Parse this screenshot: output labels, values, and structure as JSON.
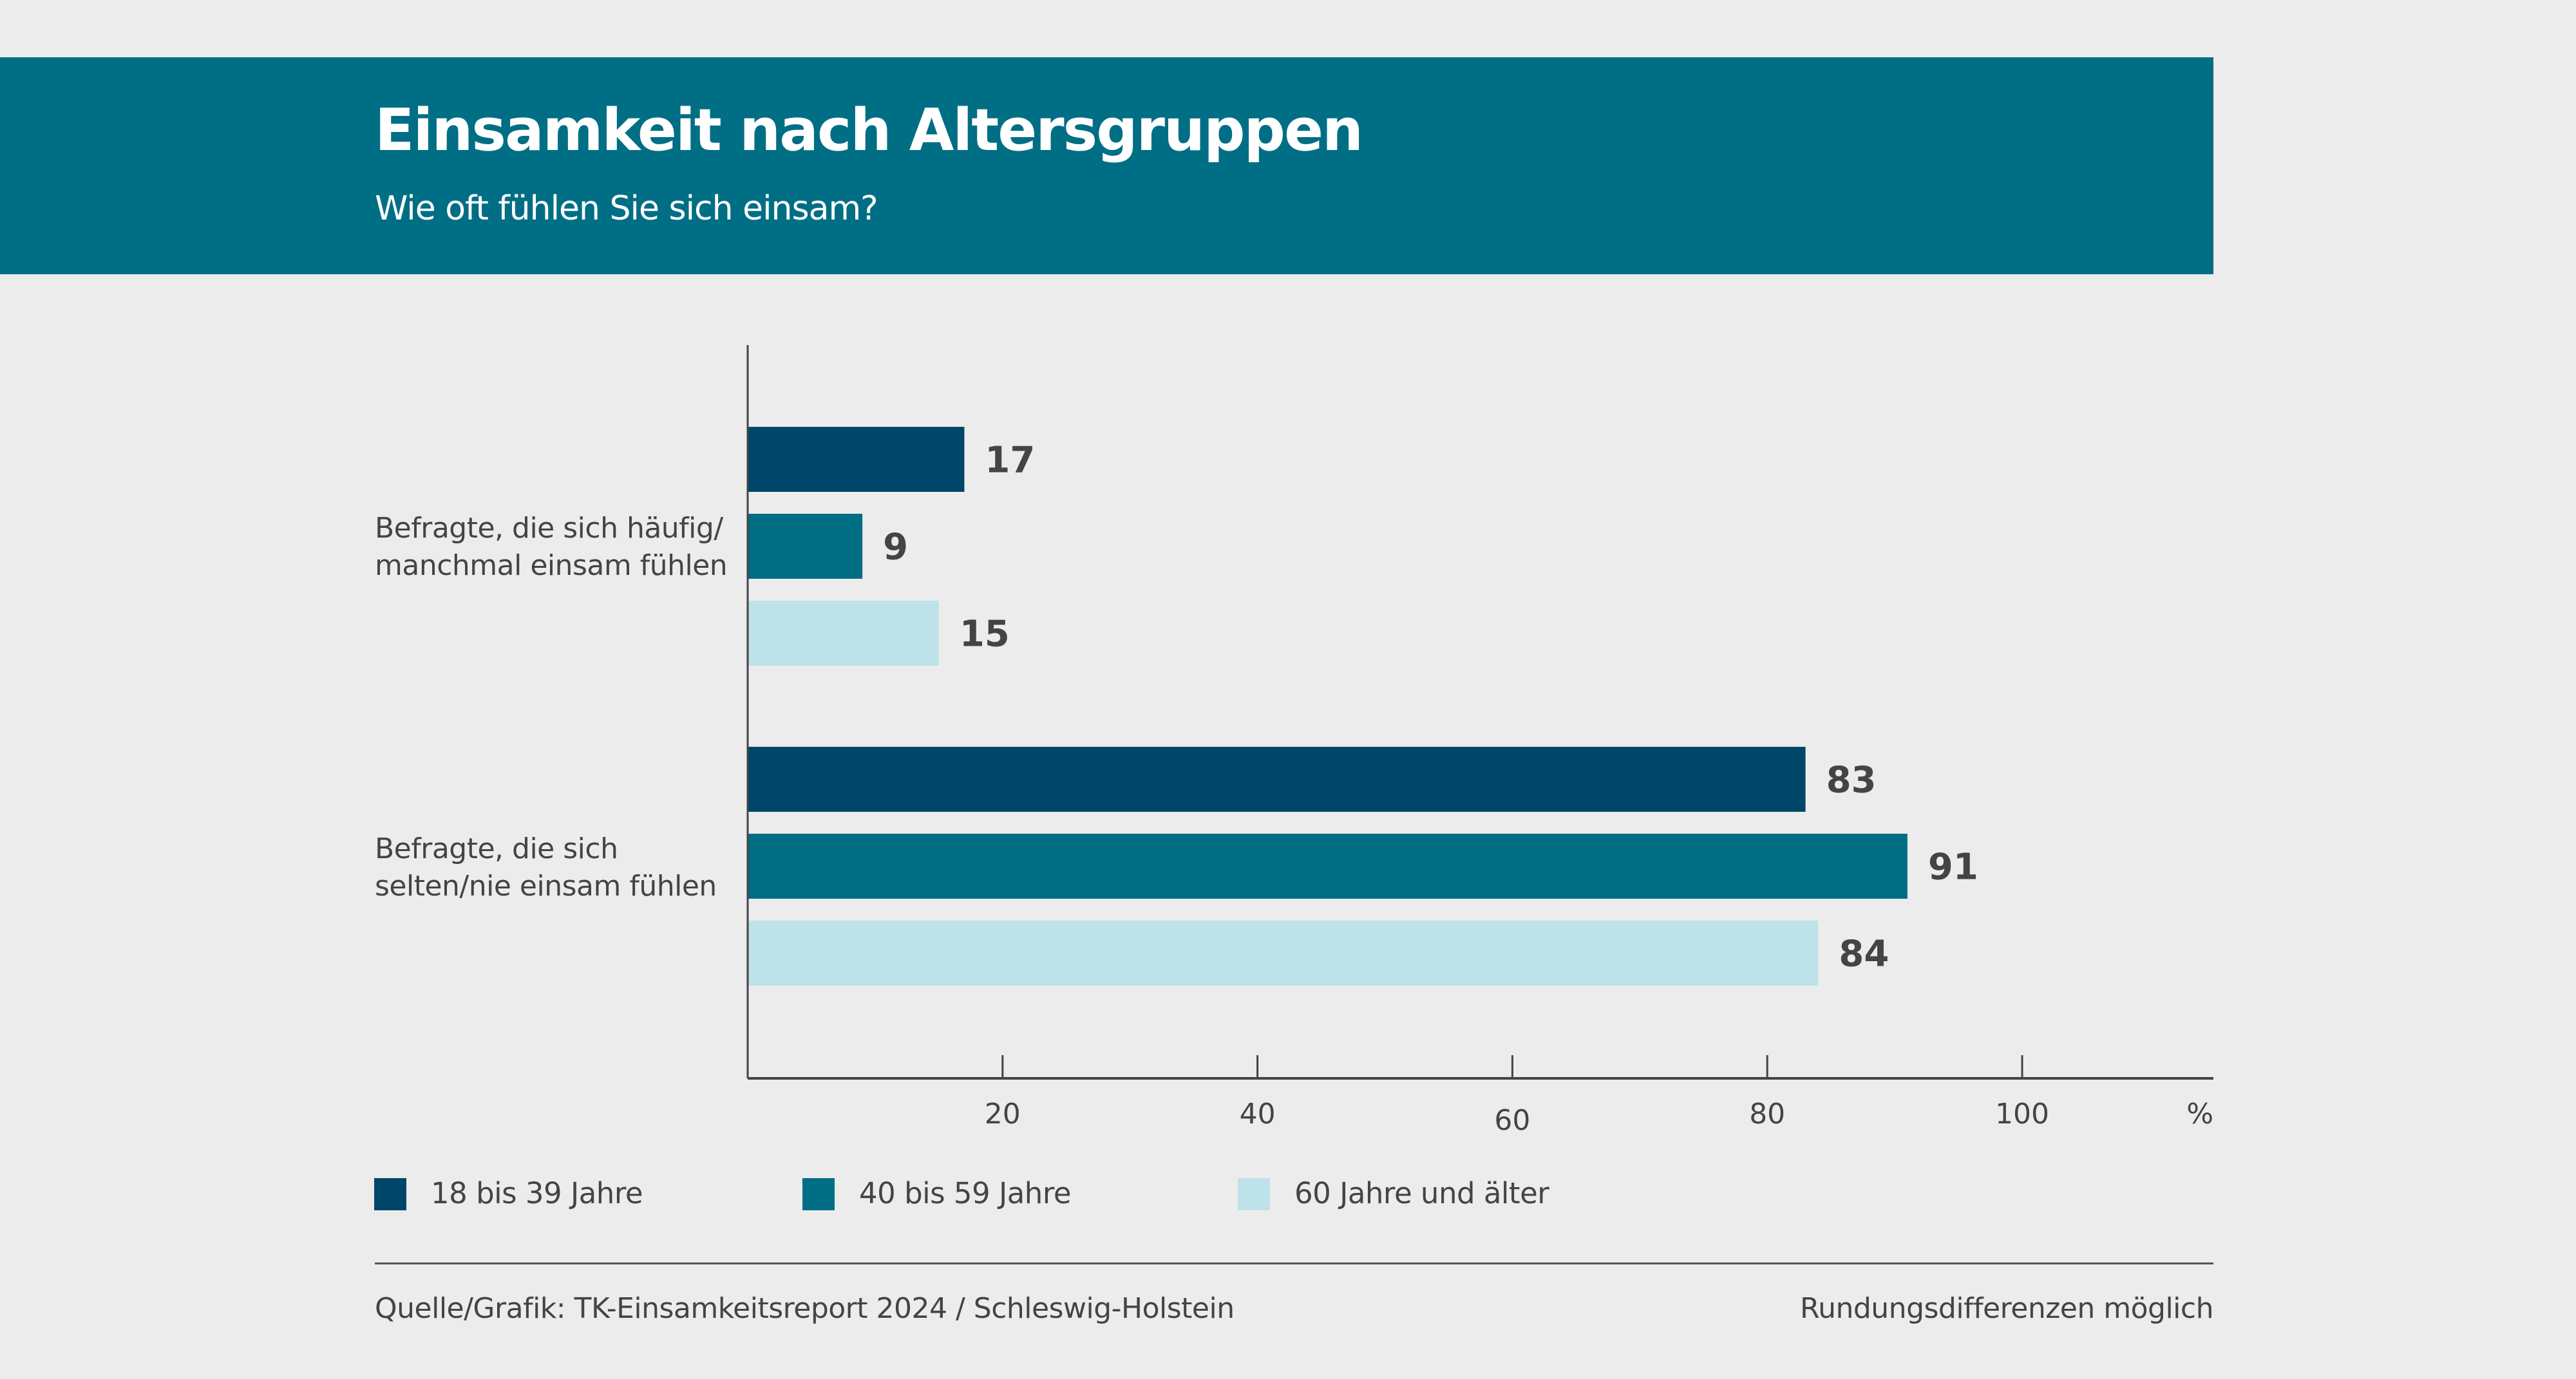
{
  "header": {
    "title": "Einsamkeit nach Altersgruppen",
    "subtitle": "Wie oft fühlen Sie sich einsam?"
  },
  "colors": {
    "header_bg": "#006e84",
    "series": [
      "#004668",
      "#006e84",
      "#bee2e9"
    ],
    "background": "#ececec",
    "text": "#444444"
  },
  "chart_data": {
    "type": "bar",
    "orientation": "horizontal",
    "title": "Einsamkeit nach Altersgruppen",
    "subtitle": "Wie oft fühlen Sie sich einsam?",
    "categories": [
      "Befragte, die sich häufig/ manchmal einsam fühlen",
      "Befragte, die sich selten/nie einsam fühlen"
    ],
    "category_lines": [
      [
        "Befragte, die sich häufig/",
        "manchmal einsam fühlen"
      ],
      [
        "Befragte, die sich",
        "selten/nie einsam fühlen"
      ]
    ],
    "series": [
      {
        "name": "18 bis 39 Jahre",
        "values": [
          17,
          83
        ]
      },
      {
        "name": "40 bis 59 Jahre",
        "values": [
          9,
          91
        ]
      },
      {
        "name": "60 Jahre und älter",
        "values": [
          15,
          84
        ]
      }
    ],
    "xlabel": "",
    "ylabel": "",
    "x_unit_label": "%",
    "xlim": [
      0,
      115
    ],
    "xticks": [
      20,
      40,
      60,
      80,
      100
    ],
    "xtick_labels": [
      "20",
      "40",
      "60",
      "80",
      "100"
    ],
    "grid": false,
    "legend_position": "bottom-left"
  },
  "footer": {
    "source": "Quelle/Grafik: TK-Einsamkeitsreport 2024 / Schleswig-Holstein",
    "note": "Rundungsdifferenzen möglich"
  }
}
